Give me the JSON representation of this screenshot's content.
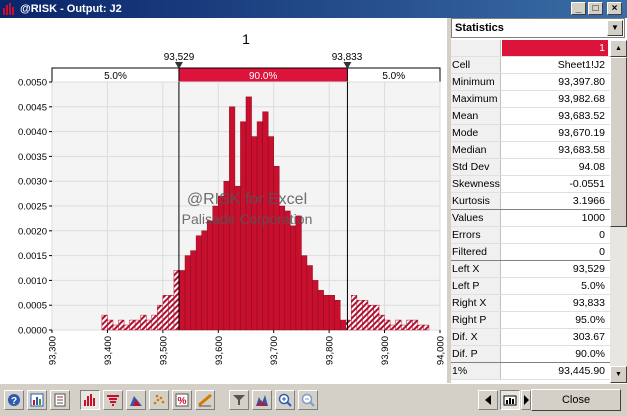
{
  "window": {
    "title": "@RISK - Output: J2"
  },
  "chart": {
    "title": "1",
    "left_marker": "93,529",
    "right_marker": "93,833",
    "band_left": "5.0%",
    "band_mid": "90.0%",
    "band_right": "5.0%",
    "watermark_line1": "@RISK for Excel",
    "watermark_line2": "Palisade Corporation",
    "y_ticks": [
      "0.0050",
      "0.0045",
      "0.0040",
      "0.0035",
      "0.0030",
      "0.0025",
      "0.0020",
      "0.0015",
      "0.0010",
      "0.0005",
      "0.0000"
    ],
    "x_ticks": [
      "93,300",
      "93,400",
      "93,500",
      "93,600",
      "93,700",
      "93,800",
      "93,900",
      "94,000"
    ]
  },
  "chart_data": {
    "type": "bar",
    "title": "1",
    "bin_width": 10,
    "bins_start": [
      93390,
      93400,
      93410,
      93420,
      93430,
      93440,
      93450,
      93460,
      93470,
      93480,
      93490,
      93500,
      93510,
      93520,
      93530,
      93540,
      93550,
      93560,
      93570,
      93580,
      93590,
      93600,
      93610,
      93620,
      93630,
      93640,
      93650,
      93660,
      93670,
      93680,
      93690,
      93700,
      93710,
      93720,
      93730,
      93740,
      93750,
      93760,
      93770,
      93780,
      93790,
      93800,
      93810,
      93820,
      93830,
      93840,
      93850,
      93860,
      93870,
      93880,
      93890,
      93900,
      93910,
      93920,
      93930,
      93940,
      93950,
      93960,
      93970
    ],
    "values": [
      0.0003,
      0.0002,
      0.0001,
      0.0002,
      0.0001,
      0.0002,
      0.0002,
      0.0003,
      0.0002,
      0.0003,
      0.0005,
      0.0007,
      0.0007,
      0.0012,
      0.0012,
      0.0015,
      0.0016,
      0.0019,
      0.002,
      0.0022,
      0.0025,
      0.0027,
      0.003,
      0.0045,
      0.0029,
      0.0042,
      0.0047,
      0.0039,
      0.0042,
      0.0044,
      0.0039,
      0.0033,
      0.0025,
      0.0024,
      0.0021,
      0.0023,
      0.0015,
      0.0013,
      0.001,
      0.0008,
      0.0007,
      0.0007,
      0.0006,
      0.0002,
      0.0002,
      0.0007,
      0.0006,
      0.0006,
      0.0005,
      0.0005,
      0.0003,
      0.0002,
      0.0001,
      0.0002,
      0.0001,
      0.0002,
      0.0002,
      0.0001,
      0.0001
    ],
    "xlim": [
      93300,
      94000
    ],
    "ylim": [
      0,
      0.005
    ],
    "left_cutoff": 93529,
    "right_cutoff": 93833,
    "colors": {
      "middle": "#c8102e",
      "tail": "#b01030"
    }
  },
  "stats": {
    "header": "Statistics",
    "rows": [
      {
        "k": "",
        "v": "1"
      },
      {
        "k": "Cell",
        "v": "Sheet1!J2"
      },
      {
        "k": "Minimum",
        "v": "93,397.80"
      },
      {
        "k": "Maximum",
        "v": "93,982.68"
      },
      {
        "k": "Mean",
        "v": "93,683.52"
      },
      {
        "k": "Mode",
        "v": "93,670.19"
      },
      {
        "k": "Median",
        "v": "93,683.58"
      },
      {
        "k": "Std Dev",
        "v": "94.08"
      },
      {
        "k": "Skewness",
        "v": "-0.0551"
      },
      {
        "k": "Kurtosis",
        "v": "3.1966"
      },
      {
        "k": "Values",
        "v": "1000"
      },
      {
        "k": "Errors",
        "v": "0"
      },
      {
        "k": "Filtered",
        "v": "0"
      },
      {
        "k": "Left X",
        "v": "93,529"
      },
      {
        "k": "Left P",
        "v": "5.0%"
      },
      {
        "k": "Right X",
        "v": "93,833"
      },
      {
        "k": "Right P",
        "v": "95.0%"
      },
      {
        "k": "Dif. X",
        "v": "303.67"
      },
      {
        "k": "Dif. P",
        "v": "90.0%"
      },
      {
        "k": "1%",
        "v": "93,445.90"
      }
    ]
  },
  "toolbar": {
    "close_label": "Close"
  }
}
